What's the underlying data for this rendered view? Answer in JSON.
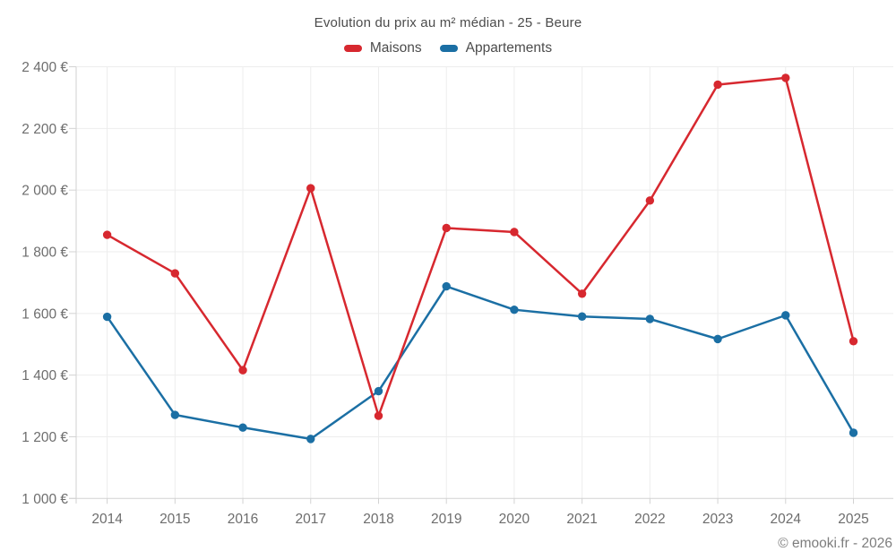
{
  "header": {
    "title": "Evolution du prix au m² médian - 25 - Beure"
  },
  "footer": {
    "credit": "© emooki.fr - 2026"
  },
  "chart_data": {
    "type": "line",
    "title": "Evolution du prix au m² médian - 25 - Beure",
    "x": [
      "2014",
      "2015",
      "2016",
      "2017",
      "2018",
      "2019",
      "2020",
      "2021",
      "2022",
      "2023",
      "2024",
      "2025"
    ],
    "series": [
      {
        "name": "Maisons",
        "color": "#d7282f",
        "values": [
          1855,
          1730,
          1416,
          2006,
          1268,
          1877,
          1864,
          1664,
          1966,
          2342,
          2364,
          1510
        ]
      },
      {
        "name": "Appartements",
        "color": "#1b6fa4",
        "values": [
          1589,
          1271,
          1230,
          1193,
          1348,
          1688,
          1612,
          1590,
          1582,
          1517,
          1594,
          1213
        ]
      }
    ],
    "ylim": [
      1000,
      2400
    ],
    "y_ticks": [
      {
        "value": 2400,
        "label": "2 400 €"
      },
      {
        "value": 2200,
        "label": "2 200 €"
      },
      {
        "value": 2000,
        "label": "2 000 €"
      },
      {
        "value": 1800,
        "label": "1 800 €"
      },
      {
        "value": 1600,
        "label": "1 600 €"
      },
      {
        "value": 1400,
        "label": "1 400 €"
      },
      {
        "value": 1200,
        "label": "1 200 €"
      },
      {
        "value": 1000,
        "label": "1 000 €"
      }
    ],
    "grid": true,
    "legend_position": "top",
    "grid_color": "#ededed",
    "axis_color": "#d2d2d2",
    "label_color": "#6d6d6d"
  }
}
